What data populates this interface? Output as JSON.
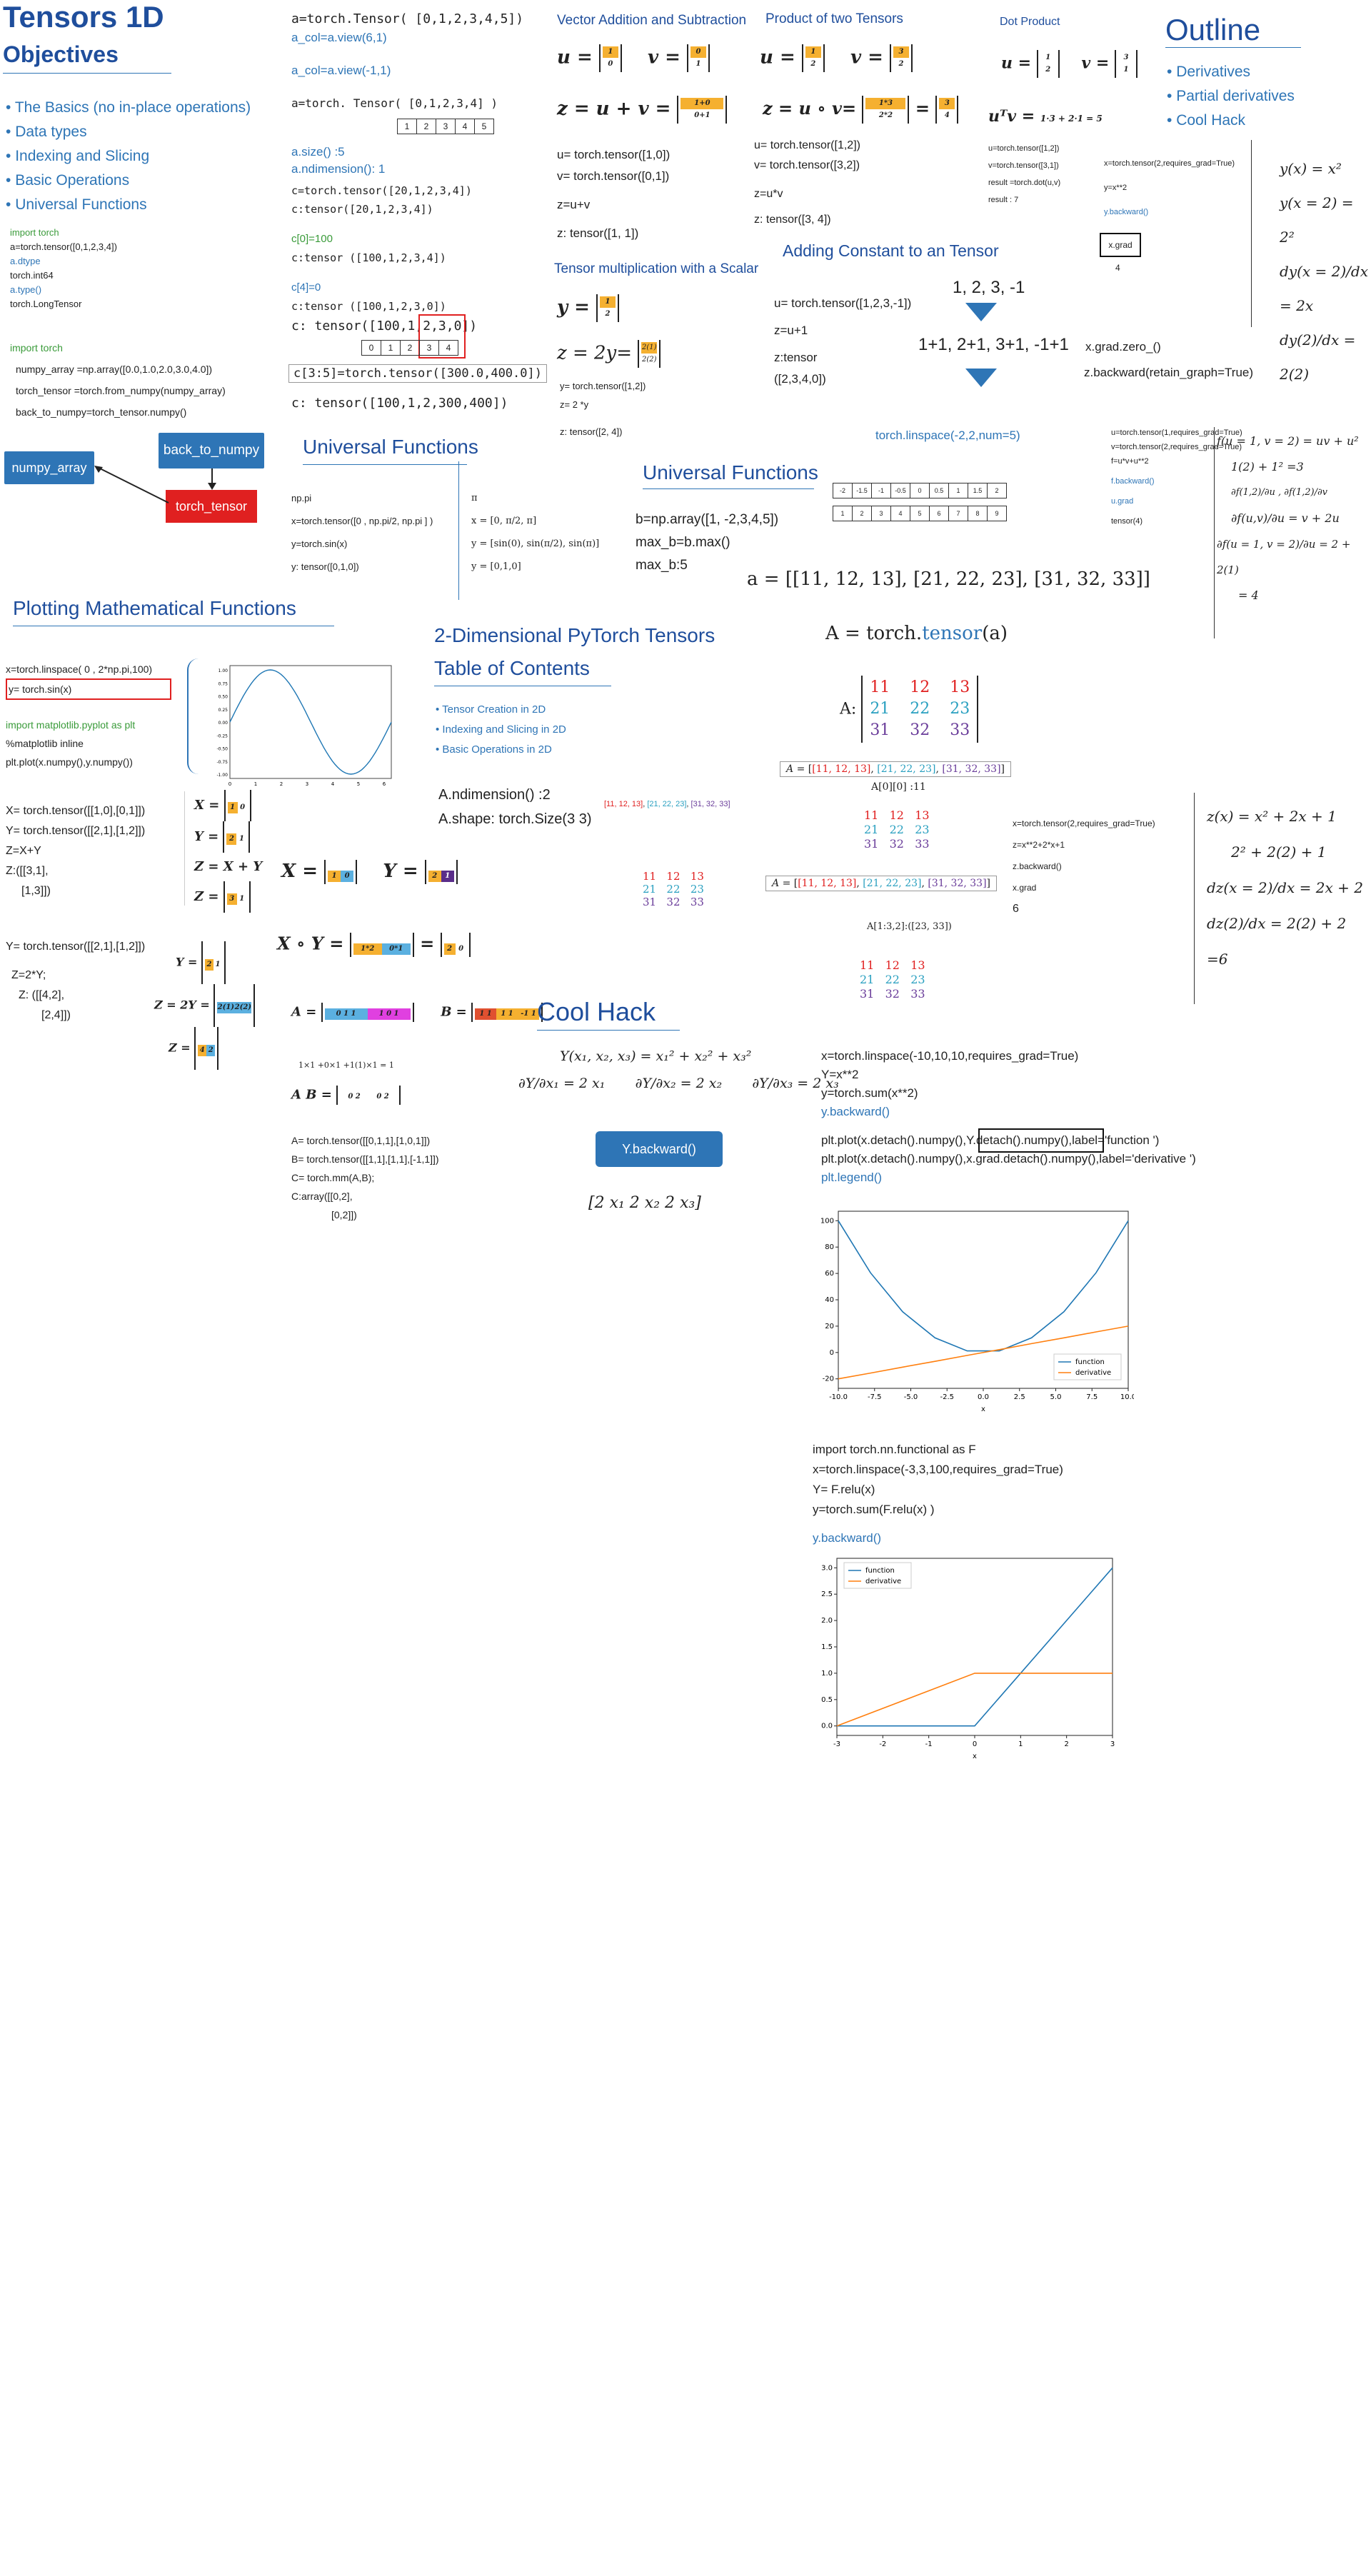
{
  "col1": {
    "title": "Tensors 1D",
    "objectives_title": "Objectives",
    "objectives": [
      "The Basics (no in-place operations)",
      "Data types",
      "Indexing and Slicing",
      "Basic Operations",
      "Universal Functions"
    ],
    "code_small": [
      "import torch",
      "a=torch.tensor([0,1,2,3,4])",
      "a.dtype",
      "torch.int64",
      "a.type()",
      "torch.LongTensor"
    ],
    "code_numpy": [
      "import torch",
      "numpy_array =np.array([0.0,1.0,2.0,3.0,4.0])",
      "torch_tensor =torch.from_numpy(numpy_array)",
      "back_to_numpy=torch_tensor.numpy()"
    ],
    "btn_back": "back_to_numpy",
    "btn_numpy": "numpy_array",
    "btn_torch": "torch_tensor"
  },
  "col2": {
    "lines1": [
      "a=torch.Tensor( [0,1,2,3,4,5])",
      "a_col=a.view(6,1)",
      "a_col=a.view(-1,1)",
      "a=torch. Tensor( [0,1,2,3,4]  )"
    ],
    "cells": [
      "1",
      "2",
      "3",
      "4",
      "5"
    ],
    "size": "a.size()  :5",
    "ndim": "a.ndimension():  1",
    "c1": "c=torch.tensor([20,1,2,3,4])",
    "c2": "c:tensor([20,1,2,3,4])",
    "c3": "c[0]=100",
    "c4": "c:tensor ([100,1,2,3,4])",
    "c5": "c[4]=0",
    "c6": "c:tensor ([100,1,2,3,0])",
    "c7": "c: tensor([100,1,2,3,0])",
    "cells2": [
      "0",
      "1",
      "2",
      "3",
      "4"
    ],
    "c8": "c[3:5]=torch.tensor([300.0,400.0])",
    "c9": "c: tensor([100,1,2,300,400])",
    "uf_title": "Universal Functions",
    "uf_lines": [
      "np.pi",
      "x=torch.tensor([0 , np.pi/2, np.pi ] )",
      "y=torch.sin(x)",
      "y: tensor([0,1,0])"
    ],
    "uf_math": [
      "π",
      "x = [0, π/2, π]",
      "y = [sin(0), sin(π/2), sin(π)]",
      "y = [0,1,0]"
    ]
  },
  "col3": {
    "vec_title": "Vector Addition and Subtraction",
    "vec_lines": [
      "u= torch.tensor([1,0])",
      "v= torch.tensor([0,1])",
      "z=u+v",
      "z: tensor([1, 1])"
    ],
    "scalar_title": "Tensor  multiplication with a Scalar",
    "scalar_lines": [
      "y= torch.tensor([1,2])",
      "z= 2 *y",
      "z: tensor([2,  4])"
    ],
    "prod_title": "Product of two Tensors",
    "prod_lines": [
      "u= torch.tensor([1,2])",
      "v= torch.tensor([3,2])",
      "z=u*v",
      "z: tensor([3,  4])"
    ],
    "add_title": "Adding Constant to an Tensor",
    "add_lines": [
      "u= torch.tensor([1,2,3,-1])",
      "z=u+1",
      "z:tensor",
      "([2,3,4,0])"
    ],
    "add_seq": "1, 2, 3, -1",
    "add_seq2": "1+1, 2+1, 3+1, -1+1",
    "linspace": "torch.linspace(-2,2,num=5)",
    "uf2_title": "Universal Functions",
    "uf2_lines": [
      "b=np.array([1, -2,3,4,5])",
      "max_b=b.max()",
      "max_b:5"
    ],
    "a_eq": "a = [[11, 12, 13], [21, 22, 23], [31, 32, 33]]",
    "dot_title": "Dot Product",
    "dot_lines": [
      "u=torch.tensor([1,2])",
      "v=torch.tensor([3,1])",
      "result =torch.dot(u,v)",
      "result : 7"
    ]
  },
  "col4": {
    "outline_title": "Outline",
    "outline_items": [
      "Derivatives",
      "Partial derivatives",
      "Cool Hack"
    ],
    "deriv_code": [
      "x=torch.tensor(2,requires_grad=True)",
      "y=x**2",
      "y.backward()"
    ],
    "xgrad": "x.grad",
    "four": "4",
    "zero": "x.grad.zero_()",
    "retain": "z.backward(retain_graph=True)",
    "eq1": "y(x) = x²",
    "eq2": "y(x = 2) = 2²",
    "eq3": "dy(x = 2)/dx = 2x",
    "eq4": "dy(2)/dx = 2(2)",
    "partial_code": [
      "u=torch.tensor(1,requires_grad=True)",
      "v=torch.tensor(2,requires_grad=True)",
      "f=u*v+u**2",
      "f.backward()",
      "u.grad",
      "tensor(4)"
    ],
    "partial_eq": [
      "f(u = 1, v = 2) = uv + u²",
      "1(2) + 1² =3",
      "∂f(1,2)/∂u , ∂f(1,2)/∂v",
      "∂f(u,v)/∂u = v + 2u",
      "∂f(u = 1, v = 2)/∂u = 2 + 2(1)",
      "= 4"
    ]
  },
  "sec2": {
    "plot_title": "Plotting Mathematical Functions",
    "plot_lines": [
      "x=torch.linspace( 0 , 2*np.pi,100)",
      "y= torch.sin(x)",
      "import matplotlib.pyplot as plt",
      "%matplotlib inline",
      "plt.plot(x.numpy(),y.numpy())"
    ],
    "sin_yticks": [
      "1.00",
      "0.75",
      "0.50",
      "0.25",
      "0.00",
      "-0.25",
      "-0.50",
      "-0.75",
      "-1.00"
    ],
    "sin_xticks": [
      "0",
      "1",
      "2",
      "3",
      "4",
      "5",
      "6"
    ],
    "x2d_lines": [
      "X= torch.tensor([[1,0],[0,1]])",
      "Y= torch.tensor([[2,1],[1,2]])",
      "Z=X+Y",
      "Z:([[3,1],",
      "[1,3]])"
    ],
    "y2_lines": [
      "Y= torch.tensor([[2,1],[1,2]])",
      "Z=2*Y;",
      "Z:  ([[4,2],",
      "[2,4]])"
    ],
    "two_d_title": "2-Dimensional  PyTorch Tensors",
    "toc_title": "Table of Contents",
    "toc": [
      "Tensor Creation in 2D",
      "Indexing and Slicing in 2D",
      "Basic Operations in 2D"
    ],
    "ndim": "A.ndimension() :2",
    "shape": "A.shape:  torch.Size(3 3)",
    "mm_lines": [
      "A= torch.tensor([[0,1,1],[1,0,1]])",
      "B= torch.tensor([[1,1],[1,1],[-1,1]])",
      "C= torch.mm(A,B);",
      "C:array([[0,2],",
      "[0,2]])"
    ],
    "a_tensor": "A = torch.tensor(a)",
    "mat": [
      [
        "11",
        "12",
        "13"
      ],
      [
        "21",
        "22",
        "23"
      ],
      [
        "31",
        "32",
        "33"
      ]
    ],
    "a00": "A[0][0]  :11",
    "aslice": "A[1:3,2]:([23, 33])",
    "zcode": [
      "x=torch.tensor(2,requires_grad=True)",
      "z=x**2+2*x+1",
      "z.backward()",
      "x.grad",
      "6"
    ],
    "zeq": [
      "z(x) = x² + 2x + 1",
      "2² + 2(2) + 1",
      "dz(x = 2)/dx = 2x + 2",
      "dz(2)/dx = 2(2) + 2 =6"
    ]
  },
  "sec3": {
    "cool_title": "Cool Hack",
    "y_eq": "Y(x₁, x₂, x₃) = x₁² + x₂² + x₃²",
    "partials": [
      "∂Y/∂x₁ = 2 x₁",
      "∂Y/∂x₂ = 2 x₂",
      "∂Y/∂x₃ = 2 x₃"
    ],
    "btn": "Y.backward()",
    "grad_vec": "[2 x₁   2 x₂   2 x₃]",
    "code1": [
      "x=torch.linspace(-10,10,10,requires_grad=True)",
      "Y=x**2",
      "y=torch.sum(x**2)",
      "y.backward()",
      "plt.plot(x.detach().numpy(),Y.detach().numpy(),label='function ')",
      "plt.plot(x.detach().numpy(),x.grad.detach().numpy(),label='derivative ')",
      "plt.legend()"
    ],
    "code2": [
      "import torch.nn.functional as F",
      "x=torch.linspace(-3,3,100,requires_grad=True)",
      "Y= F.relu(x)",
      "y=torch.sum(F.relu(x) )",
      "y.backward()"
    ],
    "legend": [
      "function",
      "derivative"
    ]
  },
  "chart_data": [
    {
      "type": "line",
      "title": "",
      "x": [
        0,
        0.5,
        1,
        1.5,
        2,
        2.5,
        3,
        3.5,
        4,
        4.5,
        5,
        5.5,
        6,
        6.28
      ],
      "series": [
        {
          "values": [
            0,
            0.48,
            0.84,
            1.0,
            0.91,
            0.6,
            0.14,
            -0.35,
            -0.76,
            -0.98,
            -0.96,
            -0.71,
            -0.28,
            0
          ]
        }
      ],
      "xlim": [
        0,
        6.28
      ],
      "ylim": [
        -1,
        1
      ]
    },
    {
      "type": "line",
      "title": "",
      "x": [
        -10,
        -7.78,
        -5.56,
        -3.33,
        -1.11,
        1.11,
        3.33,
        5.56,
        7.78,
        10
      ],
      "series": [
        {
          "name": "function",
          "values": [
            100,
            60.5,
            30.9,
            11.1,
            1.2,
            1.2,
            11.1,
            30.9,
            60.5,
            100
          ]
        },
        {
          "name": "derivative",
          "values": [
            -20,
            -15.6,
            -11.1,
            -6.7,
            -2.2,
            2.2,
            6.7,
            11.1,
            15.6,
            20
          ]
        }
      ],
      "xlim": [
        -10,
        10
      ],
      "ylim": [
        -20,
        100
      ],
      "xticks": [
        -10.0,
        -7.5,
        -5.0,
        -2.5,
        0.0,
        2.5,
        5.0,
        7.5,
        10.0
      ],
      "yticks": [
        -20,
        0,
        20,
        40,
        60,
        80,
        100
      ],
      "xlabel": "x"
    },
    {
      "type": "line",
      "title": "",
      "x": [
        -3,
        0,
        3
      ],
      "series": [
        {
          "name": "function",
          "values": [
            0,
            0,
            3
          ]
        },
        {
          "name": "derivative",
          "values": [
            0,
            1,
            1
          ]
        }
      ],
      "xlim": [
        -3,
        3
      ],
      "ylim": [
        0,
        3
      ],
      "xticks": [
        -3,
        -2,
        -1,
        0,
        1,
        2,
        3
      ],
      "yticks": [
        0.0,
        0.5,
        1.0,
        1.5,
        2.0,
        2.5,
        3.0
      ],
      "xlabel": "x"
    }
  ]
}
